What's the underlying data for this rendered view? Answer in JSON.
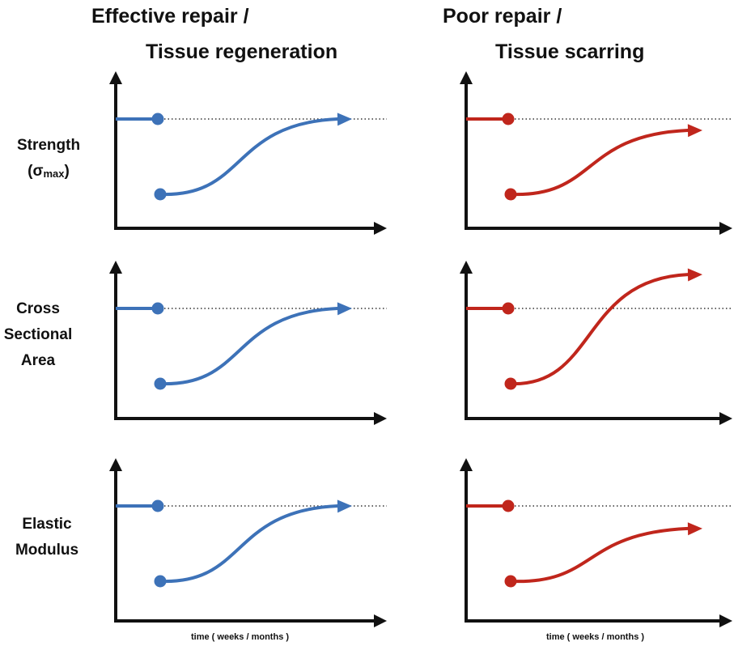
{
  "columns": [
    {
      "title_line1": "Effective repair /",
      "title_line2": "Tissue regeneration",
      "color": "#3d72b8"
    },
    {
      "title_line1": "Poor repair /",
      "title_line2": "Tissue scarring",
      "color": "#c0261c"
    }
  ],
  "rows": [
    {
      "line1": "Strength",
      "symbol": "(σ",
      "symbol_sub": "max",
      "symbol_close": ")"
    },
    {
      "line1": "Cross",
      "line2": "Sectional",
      "line3": "Area"
    },
    {
      "line1": "Elastic",
      "line2": "Modulus"
    }
  ],
  "x_axis_label": "time ( weeks / months )",
  "colors": {
    "axis": "#111111",
    "baseline_dots": "#333333",
    "effective": "#3d72b8",
    "poor": "#c0261c"
  },
  "curves": {
    "effective": {
      "start_fraction": 0.0,
      "end_fraction": 1.0
    },
    "poor_strength": {
      "start_fraction": 0.0,
      "end_fraction": 0.85
    },
    "poor_cross_sectional_area": {
      "start_fraction": 0.0,
      "end_fraction": 1.45
    },
    "poor_elastic_modulus": {
      "start_fraction": 0.0,
      "end_fraction": 0.7
    }
  }
}
